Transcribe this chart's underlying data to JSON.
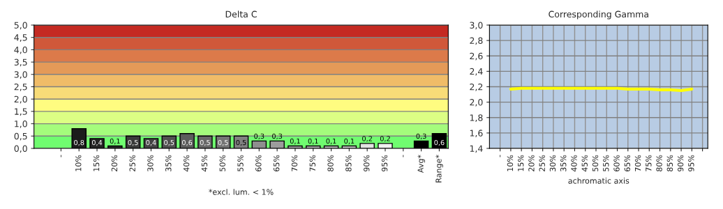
{
  "chart_data": [
    {
      "type": "bar",
      "title": "Delta C",
      "xlabel": "*excl. lum. < 1%",
      "categories": [
        "-",
        "10%",
        "15%",
        "20%",
        "25%",
        "30%",
        "35%",
        "40%",
        "45%",
        "50%",
        "55%",
        "60%",
        "65%",
        "70%",
        "75%",
        "80%",
        "85%",
        "90%",
        "95%",
        "-",
        "Avg*",
        "Range*"
      ],
      "values": [
        null,
        0.8,
        0.4,
        0.1,
        0.5,
        0.4,
        0.5,
        0.6,
        0.5,
        0.5,
        0.5,
        0.3,
        0.3,
        0.1,
        0.1,
        0.1,
        0.1,
        0.2,
        0.2,
        null,
        0.3,
        0.6
      ],
      "value_labels": [
        null,
        "0,8",
        "0,4",
        "0,1",
        "0,5",
        "0,4",
        "0,5",
        "0,6",
        "0,5",
        "0,5",
        "0,5",
        "0,3",
        "0,3",
        "0,1",
        "0,1",
        "0,1",
        "0,1",
        "0,2",
        "0,2",
        null,
        "0,3",
        "0,6"
      ],
      "colors": [
        "#000000",
        "#1c1c1c",
        "#242424",
        "#2c2c2c",
        "#3a3a3a",
        "#444444",
        "#505050",
        "#5c5c5c",
        "#686868",
        "#747474",
        "#808080",
        "#8e8e8e",
        "#9c9c9c",
        "#aaaaaa",
        "#b8b8b8",
        "#c6c6c6",
        "#d4d4d4",
        "#e2e2e2",
        "#f0f0f0",
        "#000000",
        "#000000",
        "#000000"
      ],
      "ylim": [
        0,
        5
      ],
      "yticks": [
        {
          "value": 0,
          "label": "0,0"
        },
        {
          "value": 0.5,
          "label": "0,5"
        },
        {
          "value": 1,
          "label": "1,0"
        },
        {
          "value": 1.5,
          "label": "1,5"
        },
        {
          "value": 2,
          "label": "2,0"
        },
        {
          "value": 2.5,
          "label": "2,5"
        },
        {
          "value": 3,
          "label": "3,0"
        },
        {
          "value": 3.5,
          "label": "3,5"
        },
        {
          "value": 4,
          "label": "4,0"
        },
        {
          "value": 4.5,
          "label": "4,5"
        },
        {
          "value": 5,
          "label": "5,0"
        }
      ],
      "bands": [
        {
          "axis": "y",
          "from": 0,
          "to": 0.5,
          "color": "#70fc70"
        },
        {
          "axis": "y",
          "from": 0.5,
          "to": 1,
          "color": "#a4fc7c"
        },
        {
          "axis": "y",
          "from": 1,
          "to": 1.5,
          "color": "#dcfe84"
        },
        {
          "axis": "y",
          "from": 1.5,
          "to": 2,
          "color": "#fffc80"
        },
        {
          "axis": "y",
          "from": 2,
          "to": 2.5,
          "color": "#f8dc78"
        },
        {
          "axis": "y",
          "from": 2.5,
          "to": 3,
          "color": "#f0bc68"
        },
        {
          "axis": "y",
          "from": 3,
          "to": 3.5,
          "color": "#e49a58"
        },
        {
          "axis": "y",
          "from": 3.5,
          "to": 4,
          "color": "#dc7a4a"
        },
        {
          "axis": "y",
          "from": 4,
          "to": 4.5,
          "color": "#d0583a"
        },
        {
          "axis": "y",
          "from": 4.5,
          "to": 5,
          "color": "#c42a22"
        }
      ],
      "grid": "y"
    },
    {
      "type": "line",
      "title": "Corresponding Gamma",
      "xlabel": "achromatic axis",
      "categories": [
        "-",
        "10%",
        "15%",
        "20%",
        "25%",
        "30%",
        "35%",
        "40%",
        "45%",
        "50%",
        "55%",
        "60%",
        "65%",
        "70%",
        "75%",
        "80%",
        "85%",
        "90%",
        "95%",
        null
      ],
      "series": [
        {
          "color": "#ffff00",
          "values": [
            null,
            2.17,
            2.18,
            2.18,
            2.18,
            2.18,
            2.18,
            2.18,
            2.18,
            2.18,
            2.18,
            2.18,
            2.17,
            2.17,
            2.17,
            2.16,
            2.16,
            2.15,
            2.17,
            null
          ]
        }
      ],
      "ylim": [
        1.4,
        3.0
      ],
      "yticks": [
        {
          "value": 1.4,
          "label": "1,4"
        },
        {
          "value": 1.6,
          "label": "1,6"
        },
        {
          "value": 1.8,
          "label": "1,8"
        },
        {
          "value": 2.0,
          "label": "2,0"
        },
        {
          "value": 2.2,
          "label": "2,2"
        },
        {
          "value": 2.4,
          "label": "2,4"
        },
        {
          "value": 2.6,
          "label": "2,6"
        },
        {
          "value": 2.8,
          "label": "2,8"
        },
        {
          "value": 3.0,
          "label": "3,0"
        }
      ],
      "grid": true
    }
  ]
}
